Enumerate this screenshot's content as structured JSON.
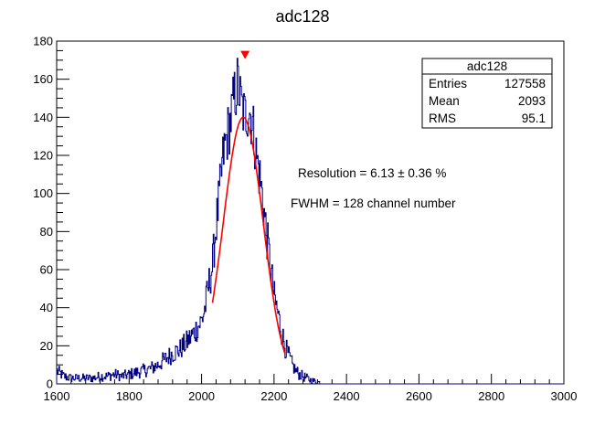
{
  "chart_data": {
    "type": "histogram",
    "title": "adc128",
    "xlabel": "",
    "ylabel": "",
    "xlim": [
      1600,
      3000
    ],
    "ylim": [
      0,
      180
    ],
    "x_ticks": [
      1600,
      1800,
      2000,
      2200,
      2400,
      2600,
      2800,
      3000
    ],
    "y_ticks": [
      0,
      20,
      40,
      60,
      80,
      100,
      120,
      140,
      160,
      180
    ],
    "grid": false,
    "series": [
      {
        "name": "adc128",
        "color": "#000080",
        "style": "step",
        "x": [
          1600,
          1620,
          1640,
          1660,
          1680,
          1700,
          1720,
          1740,
          1760,
          1780,
          1800,
          1820,
          1840,
          1860,
          1880,
          1900,
          1920,
          1940,
          1960,
          1980,
          2000,
          2010,
          2020,
          2030,
          2040,
          2050,
          2060,
          2070,
          2080,
          2090,
          2100,
          2110,
          2120,
          2130,
          2140,
          2150,
          2160,
          2170,
          2180,
          2190,
          2200,
          2210,
          2220,
          2230,
          2240,
          2250,
          2260,
          2270,
          2280,
          2290,
          2300,
          2320,
          2340,
          2360
        ],
        "y": [
          7,
          4,
          3,
          3,
          3,
          3,
          4,
          4,
          5,
          4,
          5,
          6,
          7,
          8,
          10,
          13,
          16,
          18,
          22,
          27,
          33,
          40,
          52,
          62,
          82,
          100,
          120,
          130,
          138,
          150,
          158,
          146,
          140,
          145,
          138,
          122,
          110,
          95,
          78,
          62,
          46,
          38,
          28,
          20,
          15,
          10,
          7,
          5,
          4,
          3,
          2,
          1,
          0,
          0
        ]
      },
      {
        "name": "gaussian-fit",
        "color": "#ff0000",
        "style": "line",
        "fit": {
          "mean": 2115,
          "sigma": 55.1,
          "amplitude": 140,
          "x_min": 2030,
          "x_max": 2230
        }
      }
    ],
    "peak_marker": {
      "x": 2120,
      "y": 173,
      "color": "#ff0000"
    },
    "stats_box": {
      "title": "adc128",
      "rows": [
        {
          "label": "Entries",
          "value": "127558"
        },
        {
          "label": "Mean",
          "value": "2093"
        },
        {
          "label": "RMS",
          "value": "95.1"
        }
      ]
    },
    "annotations": [
      {
        "text": "Resolution = 6.13 ± 0.36 %"
      },
      {
        "text": "FWHM = 128 channel number"
      }
    ]
  }
}
